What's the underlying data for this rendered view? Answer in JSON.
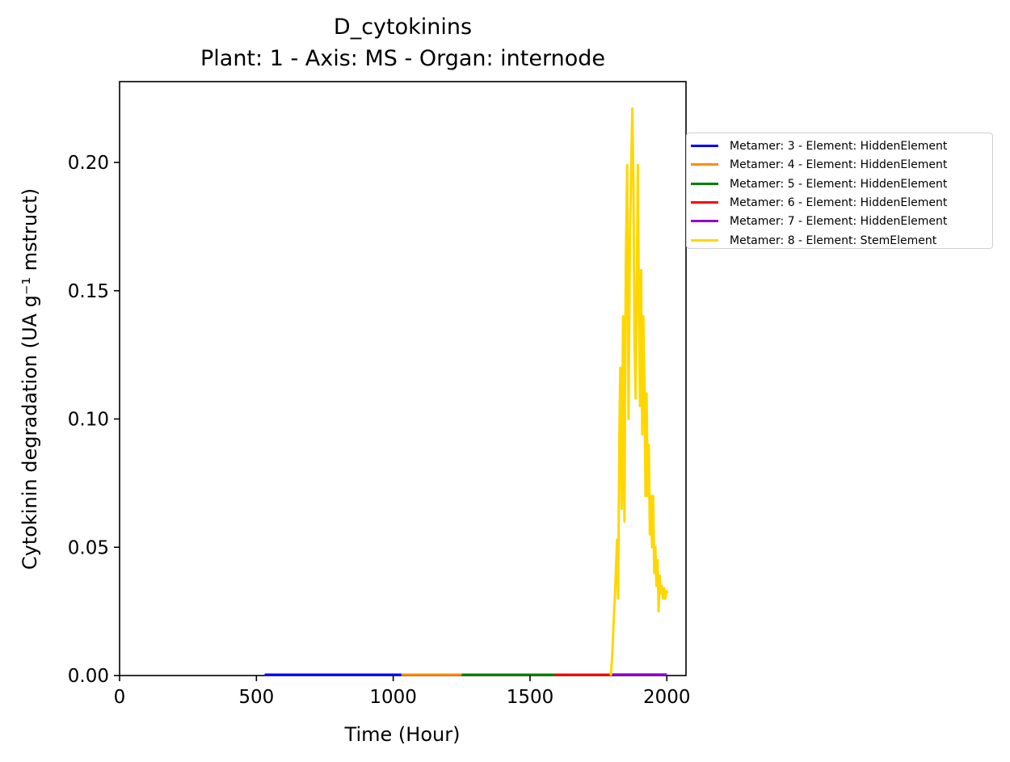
{
  "chart_data": {
    "type": "line",
    "title": "D_cytokinins",
    "subtitle": "Plant: 1 - Axis: MS - Organ: internode",
    "xlabel": "Time (Hour)",
    "ylabel": "Cytokinin degradation (UA g⁻¹ mstruct)",
    "xlim": [
      0,
      2070
    ],
    "ylim": [
      0,
      0.2315
    ],
    "x_ticks": [
      0,
      500,
      1000,
      1500,
      2000
    ],
    "y_ticks": [
      0.0,
      0.05,
      0.1,
      0.15,
      0.2
    ],
    "x_tick_labels": [
      "0",
      "500",
      "1000",
      "1500",
      "2000"
    ],
    "y_tick_labels": [
      "0.00",
      "0.05",
      "0.10",
      "0.15",
      "0.20"
    ],
    "grid": false,
    "legend_position": "outside-right",
    "series": [
      {
        "name": "Metamer: 3 - Element: HiddenElement",
        "color": "#0000ff",
        "x": [
          530,
          1030
        ],
        "y": [
          0.0003,
          0.0003
        ]
      },
      {
        "name": "Metamer: 4 - Element: HiddenElement",
        "color": "#ff8c00",
        "x": [
          1030,
          1250
        ],
        "y": [
          0.0003,
          0.0003
        ]
      },
      {
        "name": "Metamer: 5 - Element: HiddenElement",
        "color": "#008000",
        "x": [
          1250,
          1590
        ],
        "y": [
          0.0003,
          0.0003
        ]
      },
      {
        "name": "Metamer: 6 - Element: HiddenElement",
        "color": "#ff0000",
        "x": [
          1590,
          1800
        ],
        "y": [
          0.0003,
          0.0003
        ]
      },
      {
        "name": "Metamer: 7 - Element: HiddenElement",
        "color": "#9400d3",
        "x": [
          1800,
          2000
        ],
        "y": [
          0.0004,
          0.0004
        ]
      },
      {
        "name": "Metamer: 8 - Element: StemElement",
        "color": "#ffd700",
        "x": [
          1795,
          1800,
          1805,
          1812,
          1818,
          1822,
          1826,
          1830,
          1835,
          1840,
          1845,
          1850,
          1855,
          1860,
          1865,
          1870,
          1874,
          1878,
          1882,
          1886,
          1890,
          1894,
          1898,
          1902,
          1906,
          1910,
          1914,
          1918,
          1922,
          1926,
          1930,
          1934,
          1938,
          1942,
          1946,
          1950,
          1954,
          1958,
          1962,
          1966,
          1970,
          1974,
          1978,
          1982,
          1986,
          1990,
          1994,
          1998,
          2002
        ],
        "y": [
          0.0,
          0.007,
          0.02,
          0.035,
          0.053,
          0.03,
          0.09,
          0.12,
          0.065,
          0.14,
          0.06,
          0.16,
          0.199,
          0.1,
          0.17,
          0.2,
          0.221,
          0.19,
          0.13,
          0.108,
          0.15,
          0.199,
          0.14,
          0.105,
          0.158,
          0.094,
          0.14,
          0.114,
          0.07,
          0.11,
          0.07,
          0.09,
          0.055,
          0.07,
          0.05,
          0.07,
          0.04,
          0.05,
          0.035,
          0.045,
          0.025,
          0.039,
          0.032,
          0.035,
          0.03,
          0.034,
          0.03,
          0.033,
          0.032
        ]
      }
    ]
  }
}
